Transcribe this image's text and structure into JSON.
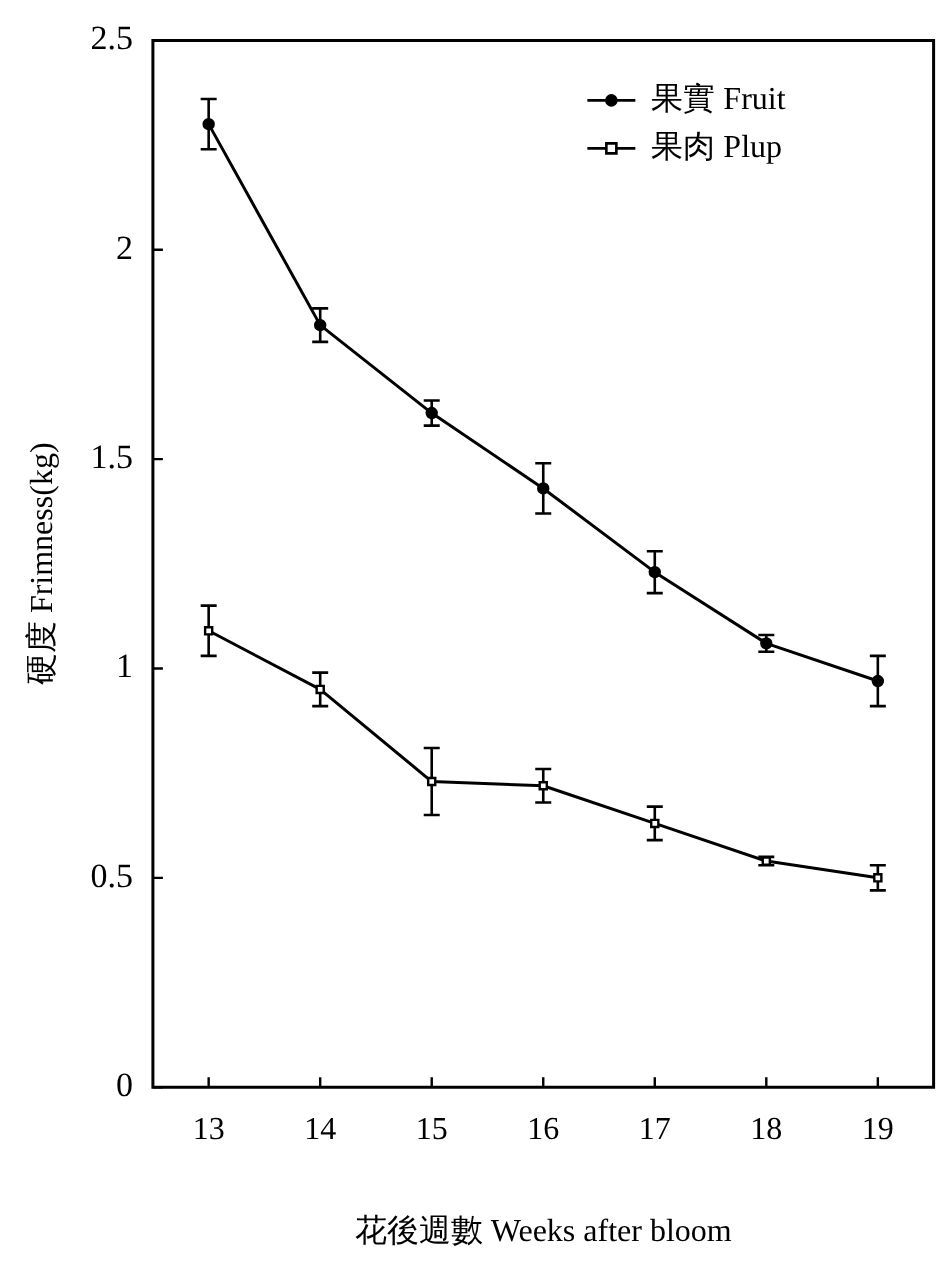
{
  "chart_data": {
    "type": "line",
    "xlabel": "花後週數 Weeks after bloom",
    "ylabel": "硬度 Frimness(kg)",
    "x": [
      13,
      14,
      15,
      16,
      17,
      18,
      19
    ],
    "xlim": [
      12.5,
      19.5
    ],
    "xticks": [
      13,
      14,
      15,
      16,
      17,
      18,
      19
    ],
    "ylim": [
      0,
      2.5
    ],
    "yticks": [
      0,
      0.5,
      1,
      1.5,
      2,
      2.5
    ],
    "grid": false,
    "legend": "top right",
    "line_style": "solid",
    "series": [
      {
        "name": "果實 Fruit",
        "color": "#000000",
        "marker": "circle",
        "values": [
          2.3,
          1.82,
          1.61,
          1.43,
          1.23,
          1.06,
          0.97
        ],
        "errors": [
          0.06,
          0.04,
          0.03,
          0.06,
          0.05,
          0.02,
          0.06
        ]
      },
      {
        "name": "果肉 Plup",
        "color": "#000000",
        "marker": "square",
        "values": [
          1.09,
          0.95,
          0.73,
          0.72,
          0.63,
          0.54,
          0.5
        ],
        "errors": [
          0.06,
          0.04,
          0.08,
          0.04,
          0.04,
          0.01,
          0.03
        ]
      }
    ]
  }
}
